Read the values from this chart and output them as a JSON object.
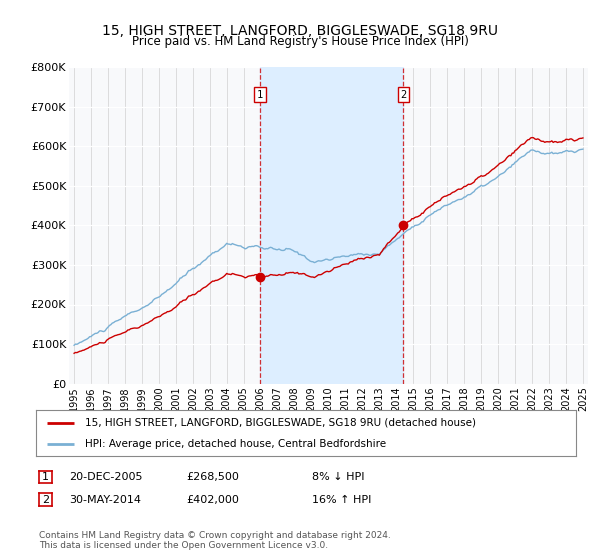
{
  "title": "15, HIGH STREET, LANGFORD, BIGGLESWADE, SG18 9RU",
  "subtitle": "Price paid vs. HM Land Registry's House Price Index (HPI)",
  "ylim": [
    0,
    800000
  ],
  "yticks": [
    0,
    100000,
    200000,
    300000,
    400000,
    500000,
    600000,
    700000,
    800000
  ],
  "ytick_labels": [
    "£0",
    "£100K",
    "£200K",
    "£300K",
    "£400K",
    "£500K",
    "£600K",
    "£700K",
    "£800K"
  ],
  "sale1_date": "20-DEC-2005",
  "sale1_price": 268500,
  "sale1_label": "8% ↓ HPI",
  "sale1_year": 2005.97,
  "sale2_date": "30-MAY-2014",
  "sale2_price": 402000,
  "sale2_label": "16% ↑ HPI",
  "sale2_year": 2014.42,
  "line_color_property": "#cc0000",
  "line_color_hpi": "#7ab0d4",
  "shade_color": "#ddeeff",
  "legend_property": "15, HIGH STREET, LANGFORD, BIGGLESWADE, SG18 9RU (detached house)",
  "legend_hpi": "HPI: Average price, detached house, Central Bedfordshire",
  "footer": "Contains HM Land Registry data © Crown copyright and database right 2024.\nThis data is licensed under the Open Government Licence v3.0.",
  "bg_color": "#ffffff",
  "plot_bg": "#f8f9fb",
  "grid_color": "#d0d0d0"
}
